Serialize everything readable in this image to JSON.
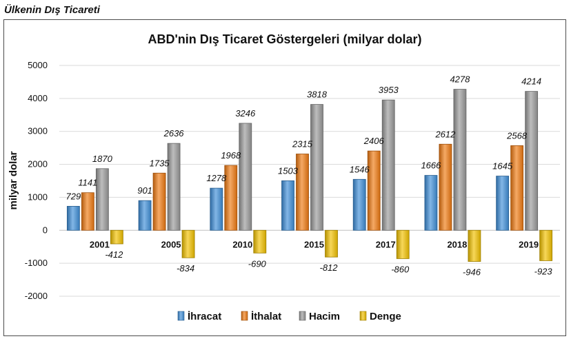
{
  "page": {
    "heading": "Ülkenin Dış Ticareti"
  },
  "colors": {
    "ihracat": "#3f8fd9",
    "ithalat": "#f07a12",
    "hacim": "#9a9a9a",
    "denge": "#f2c200"
  },
  "chart_data": {
    "type": "bar",
    "title": "ABD'nin Dış Ticaret Göstergeleri (milyar dolar)",
    "xlabel": "",
    "ylabel": "milyar dolar",
    "ylim": [
      -2000,
      5000
    ],
    "yticks": [
      5000,
      4000,
      3000,
      2000,
      1000,
      0,
      -1000,
      -2000
    ],
    "grid": true,
    "legend_position": "bottom",
    "categories": [
      "2001",
      "2005",
      "2010",
      "2015",
      "2017",
      "2018",
      "2019"
    ],
    "series": [
      {
        "name": "İhracat",
        "color_key": "ihracat",
        "values": [
          729,
          901,
          1278,
          1503,
          1546,
          1666,
          1645
        ]
      },
      {
        "name": "İthalat",
        "color_key": "ithalat",
        "values": [
          1141,
          1735,
          1968,
          2315,
          2406,
          2612,
          2568
        ]
      },
      {
        "name": "Hacim",
        "color_key": "hacim",
        "values": [
          1870,
          2636,
          3246,
          3818,
          3953,
          4278,
          4214
        ]
      },
      {
        "name": "Denge",
        "color_key": "denge",
        "values": [
          -412,
          -834,
          -690,
          -812,
          -860,
          -946,
          -923
        ]
      }
    ]
  }
}
